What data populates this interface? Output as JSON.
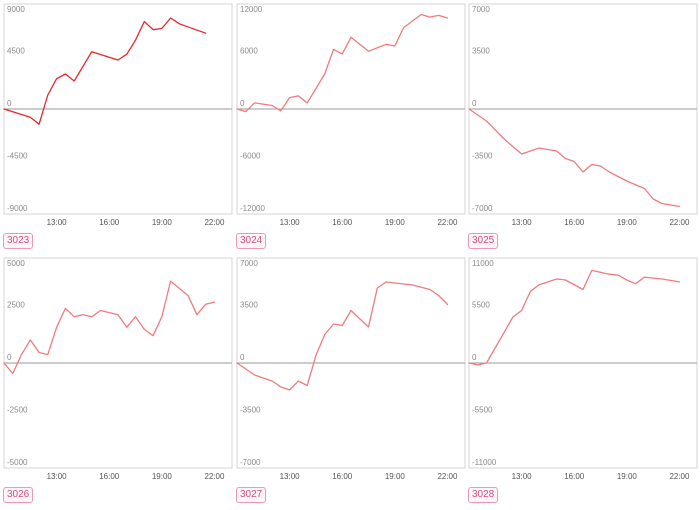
{
  "chart_data": [
    {
      "type": "line",
      "label": "3023",
      "color": "#e8262b",
      "x_ticks": [
        "13:00",
        "16:00",
        "19:00",
        "22:00"
      ],
      "y_ticks": [
        "9000",
        "4500",
        "0",
        "-4500",
        "-9000"
      ],
      "ylim": [
        -9000,
        9000
      ],
      "series": [
        {
          "values": [
            {
              "t": "10:00",
              "v": 0
            },
            {
              "t": "11:30",
              "v": -700
            },
            {
              "t": "12:00",
              "v": -1300
            },
            {
              "t": "12:30",
              "v": 1200
            },
            {
              "t": "13:00",
              "v": 2600
            },
            {
              "t": "13:30",
              "v": 3000
            },
            {
              "t": "14:00",
              "v": 2400
            },
            {
              "t": "15:00",
              "v": 4900
            },
            {
              "t": "16:30",
              "v": 4200
            },
            {
              "t": "17:00",
              "v": 4700
            },
            {
              "t": "17:30",
              "v": 5900
            },
            {
              "t": "18:00",
              "v": 7500
            },
            {
              "t": "18:30",
              "v": 6800
            },
            {
              "t": "19:00",
              "v": 6900
            },
            {
              "t": "19:30",
              "v": 7800
            },
            {
              "t": "20:00",
              "v": 7300
            },
            {
              "t": "21:30",
              "v": 6500
            }
          ]
        }
      ]
    },
    {
      "type": "line",
      "label": "3024",
      "color": "#f07b7d",
      "x_ticks": [
        "13:00",
        "16:00",
        "19:00",
        "22:00"
      ],
      "y_ticks": [
        "12000",
        "6000",
        "0",
        "-6000",
        "-12000"
      ],
      "ylim": [
        -12000,
        12000
      ],
      "series": [
        {
          "values": [
            {
              "t": "10:00",
              "v": 0
            },
            {
              "t": "10:30",
              "v": -300
            },
            {
              "t": "11:00",
              "v": 700
            },
            {
              "t": "12:00",
              "v": 400
            },
            {
              "t": "12:30",
              "v": -200
            },
            {
              "t": "13:00",
              "v": 1300
            },
            {
              "t": "13:30",
              "v": 1500
            },
            {
              "t": "14:00",
              "v": 700
            },
            {
              "t": "15:00",
              "v": 4000
            },
            {
              "t": "15:30",
              "v": 6800
            },
            {
              "t": "16:00",
              "v": 6300
            },
            {
              "t": "16:30",
              "v": 8200
            },
            {
              "t": "17:30",
              "v": 6600
            },
            {
              "t": "18:30",
              "v": 7400
            },
            {
              "t": "19:00",
              "v": 7200
            },
            {
              "t": "19:30",
              "v": 9300
            },
            {
              "t": "20:30",
              "v": 10800
            },
            {
              "t": "21:00",
              "v": 10500
            },
            {
              "t": "21:30",
              "v": 10700
            },
            {
              "t": "22:00",
              "v": 10400
            }
          ]
        }
      ]
    },
    {
      "type": "line",
      "label": "3025",
      "color": "#f07b7d",
      "x_ticks": [
        "13:00",
        "16:00",
        "19:00",
        "22:00"
      ],
      "y_ticks": [
        "7000",
        "3500",
        "0",
        "-3500",
        "-7000"
      ],
      "ylim": [
        -7000,
        7000
      ],
      "series": [
        {
          "values": [
            {
              "t": "10:00",
              "v": 0
            },
            {
              "t": "11:00",
              "v": -800
            },
            {
              "t": "12:00",
              "v": -2000
            },
            {
              "t": "13:00",
              "v": -3000
            },
            {
              "t": "14:00",
              "v": -2600
            },
            {
              "t": "15:00",
              "v": -2800
            },
            {
              "t": "15:30",
              "v": -3300
            },
            {
              "t": "16:00",
              "v": -3500
            },
            {
              "t": "16:30",
              "v": -4200
            },
            {
              "t": "17:00",
              "v": -3700
            },
            {
              "t": "17:30",
              "v": -3800
            },
            {
              "t": "18:00",
              "v": -4200
            },
            {
              "t": "19:00",
              "v": -4800
            },
            {
              "t": "20:00",
              "v": -5300
            },
            {
              "t": "20:30",
              "v": -6000
            },
            {
              "t": "21:00",
              "v": -6300
            },
            {
              "t": "22:00",
              "v": -6500
            }
          ]
        }
      ]
    },
    {
      "type": "line",
      "label": "3026",
      "color": "#f07b7d",
      "x_ticks": [
        "13:00",
        "16:00",
        "19:00",
        "22:00"
      ],
      "y_ticks": [
        "5000",
        "2500",
        "0",
        "-2500",
        "-5000"
      ],
      "ylim": [
        -5000,
        5000
      ],
      "series": [
        {
          "values": [
            {
              "t": "10:00",
              "v": 0
            },
            {
              "t": "10:30",
              "v": -500
            },
            {
              "t": "11:00",
              "v": 400
            },
            {
              "t": "11:30",
              "v": 1100
            },
            {
              "t": "12:00",
              "v": 500
            },
            {
              "t": "12:30",
              "v": 400
            },
            {
              "t": "13:00",
              "v": 1700
            },
            {
              "t": "13:30",
              "v": 2600
            },
            {
              "t": "14:00",
              "v": 2200
            },
            {
              "t": "14:30",
              "v": 2300
            },
            {
              "t": "15:00",
              "v": 2200
            },
            {
              "t": "15:30",
              "v": 2500
            },
            {
              "t": "16:30",
              "v": 2300
            },
            {
              "t": "17:00",
              "v": 1700
            },
            {
              "t": "17:30",
              "v": 2200
            },
            {
              "t": "18:00",
              "v": 1600
            },
            {
              "t": "18:30",
              "v": 1300
            },
            {
              "t": "19:00",
              "v": 2200
            },
            {
              "t": "19:30",
              "v": 3900
            },
            {
              "t": "20:30",
              "v": 3200
            },
            {
              "t": "21:00",
              "v": 2300
            },
            {
              "t": "21:30",
              "v": 2800
            },
            {
              "t": "22:00",
              "v": 2900
            }
          ]
        }
      ]
    },
    {
      "type": "line",
      "label": "3027",
      "color": "#f07b7d",
      "x_ticks": [
        "13:00",
        "16:00",
        "19:00",
        "22:00"
      ],
      "y_ticks": [
        "7000",
        "3500",
        "0",
        "-3500",
        "-7000"
      ],
      "ylim": [
        -7000,
        7000
      ],
      "series": [
        {
          "values": [
            {
              "t": "10:00",
              "v": 0
            },
            {
              "t": "11:00",
              "v": -800
            },
            {
              "t": "12:00",
              "v": -1200
            },
            {
              "t": "12:30",
              "v": -1600
            },
            {
              "t": "13:00",
              "v": -1800
            },
            {
              "t": "13:30",
              "v": -1200
            },
            {
              "t": "14:00",
              "v": -1500
            },
            {
              "t": "14:30",
              "v": 500
            },
            {
              "t": "15:00",
              "v": 1900
            },
            {
              "t": "15:30",
              "v": 2600
            },
            {
              "t": "16:00",
              "v": 2500
            },
            {
              "t": "16:30",
              "v": 3500
            },
            {
              "t": "17:30",
              "v": 2400
            },
            {
              "t": "18:00",
              "v": 5000
            },
            {
              "t": "18:30",
              "v": 5400
            },
            {
              "t": "20:00",
              "v": 5200
            },
            {
              "t": "21:00",
              "v": 4900
            },
            {
              "t": "21:30",
              "v": 4500
            },
            {
              "t": "22:00",
              "v": 3900
            }
          ]
        }
      ]
    },
    {
      "type": "line",
      "label": "3028",
      "color": "#f07b7d",
      "x_ticks": [
        "13:00",
        "16:00",
        "19:00",
        "22:00"
      ],
      "y_ticks": [
        "11000",
        "5500",
        "0",
        "-5500",
        "-11000"
      ],
      "ylim": [
        -11000,
        11000
      ],
      "series": [
        {
          "values": [
            {
              "t": "10:00",
              "v": 0
            },
            {
              "t": "10:30",
              "v": -200
            },
            {
              "t": "11:00",
              "v": 0
            },
            {
              "t": "12:30",
              "v": 4800
            },
            {
              "t": "13:00",
              "v": 5500
            },
            {
              "t": "13:30",
              "v": 7500
            },
            {
              "t": "14:00",
              "v": 8200
            },
            {
              "t": "15:00",
              "v": 8800
            },
            {
              "t": "15:30",
              "v": 8700
            },
            {
              "t": "16:30",
              "v": 7700
            },
            {
              "t": "17:00",
              "v": 9700
            },
            {
              "t": "18:00",
              "v": 9300
            },
            {
              "t": "18:30",
              "v": 9200
            },
            {
              "t": "19:00",
              "v": 8700
            },
            {
              "t": "19:30",
              "v": 8300
            },
            {
              "t": "20:00",
              "v": 9000
            },
            {
              "t": "21:00",
              "v": 8800
            },
            {
              "t": "22:00",
              "v": 8500
            }
          ]
        }
      ]
    }
  ]
}
